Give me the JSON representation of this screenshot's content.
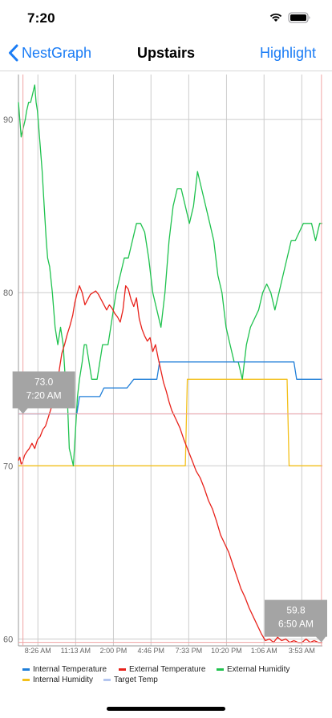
{
  "status_bar": {
    "time": "7:20",
    "icons": [
      "wifi-icon",
      "battery-icon"
    ]
  },
  "nav": {
    "back_label": "NestGraph",
    "title": "Upstairs",
    "right_label": "Highlight",
    "accent_color": "#1a7cf5"
  },
  "chart_data": {
    "type": "line",
    "title": "",
    "xlabel": "",
    "ylabel": "",
    "ylim": [
      59.6,
      92.6
    ],
    "y_ticks": [
      60,
      70,
      80,
      90
    ],
    "x_range_hours": [
      7.0,
      29.4
    ],
    "x_ticks": [
      {
        "label": "8:26 AM",
        "hour": 8.433
      },
      {
        "label": "11:13 AM",
        "hour": 11.217
      },
      {
        "label": "2:00 PM",
        "hour": 14.0
      },
      {
        "label": "4:46 PM",
        "hour": 16.767
      },
      {
        "label": "7:33 PM",
        "hour": 19.55
      },
      {
        "label": "10:20 PM",
        "hour": 22.333
      },
      {
        "label": "1:06 AM",
        "hour": 25.1
      },
      {
        "label": "3:53 AM",
        "hour": 27.883
      }
    ],
    "grid": true,
    "legend": "bottom",
    "series": [
      {
        "name": "Internal Temperature",
        "color": "#1f7ed8",
        "x": [
          7.0,
          11.3,
          11.5,
          13.0,
          13.3,
          15.0,
          15.5,
          17.2,
          17.4,
          27.3,
          27.5,
          29.4
        ],
        "y": [
          73.0,
          73.0,
          74.0,
          74.0,
          74.5,
          74.5,
          75.0,
          75.0,
          76.0,
          76.0,
          75.0,
          75.0
        ]
      },
      {
        "name": "External Temperature",
        "color": "#e8221b",
        "x": [
          7.0,
          7.1,
          7.2,
          7.3,
          7.45,
          7.6,
          7.8,
          8.0,
          8.2,
          8.4,
          8.6,
          8.8,
          9.0,
          9.2,
          9.4,
          9.6,
          9.8,
          10.0,
          10.2,
          10.4,
          10.6,
          10.8,
          11.0,
          11.15,
          11.3,
          11.5,
          11.7,
          11.9,
          12.1,
          12.3,
          12.5,
          12.7,
          12.9,
          13.1,
          13.3,
          13.5,
          13.7,
          13.9,
          14.1,
          14.3,
          14.5,
          14.7,
          14.9,
          15.1,
          15.3,
          15.5,
          15.7,
          15.9,
          16.1,
          16.3,
          16.5,
          16.7,
          16.9,
          17.1,
          17.3,
          17.5,
          17.7,
          17.9,
          18.1,
          18.3,
          18.6,
          18.9,
          19.2,
          19.5,
          19.8,
          20.1,
          20.4,
          20.7,
          21.0,
          21.3,
          21.6,
          21.9,
          22.2,
          22.5,
          22.8,
          23.1,
          23.4,
          23.7,
          24.0,
          24.3,
          24.6,
          24.9,
          25.2,
          25.5,
          25.8,
          26.1,
          26.4,
          26.7,
          27.0,
          27.3,
          27.6,
          27.9,
          28.2,
          28.5,
          28.8,
          29.1,
          29.4
        ],
        "y": [
          70.3,
          70.5,
          70.1,
          70.2,
          70.6,
          70.8,
          71.0,
          71.3,
          71.0,
          71.5,
          71.7,
          72.1,
          72.3,
          72.8,
          73.3,
          73.8,
          74.5,
          75.5,
          76.5,
          77.0,
          77.6,
          78.1,
          78.7,
          79.4,
          79.9,
          80.4,
          80.0,
          79.3,
          79.6,
          79.9,
          80.0,
          80.1,
          79.9,
          79.6,
          79.3,
          79.0,
          79.3,
          79.1,
          78.8,
          78.6,
          78.3,
          79.0,
          80.4,
          80.2,
          79.6,
          79.2,
          79.7,
          78.5,
          77.9,
          77.5,
          77.2,
          77.4,
          76.6,
          77.0,
          76.2,
          75.5,
          74.8,
          74.3,
          73.7,
          73.2,
          72.7,
          72.2,
          71.5,
          70.9,
          70.3,
          69.7,
          69.3,
          68.7,
          68.0,
          67.5,
          66.8,
          66.0,
          65.5,
          65.0,
          64.3,
          63.6,
          62.9,
          62.4,
          61.8,
          61.3,
          60.8,
          60.3,
          59.9,
          60.0,
          59.8,
          60.1,
          59.9,
          60.0,
          59.8,
          59.9,
          59.8,
          59.8,
          60.0,
          59.8,
          59.9,
          59.8,
          59.8
        ]
      },
      {
        "name": "External Humidity",
        "color": "#1fc24e",
        "x": [
          7.0,
          7.1,
          7.2,
          7.35,
          7.5,
          7.6,
          7.75,
          7.9,
          8.05,
          8.2,
          8.3,
          8.4,
          8.5,
          8.6,
          8.75,
          8.9,
          9.05,
          9.15,
          9.3,
          9.5,
          9.7,
          9.9,
          10.1,
          10.3,
          10.45,
          10.6,
          10.75,
          10.9,
          11.05,
          11.2,
          11.35,
          11.5,
          11.7,
          11.85,
          12.0,
          12.2,
          12.4,
          12.6,
          12.8,
          13.0,
          13.2,
          13.4,
          13.6,
          13.8,
          14.0,
          14.2,
          14.5,
          14.8,
          15.1,
          15.4,
          15.7,
          16.0,
          16.3,
          16.6,
          16.9,
          17.2,
          17.5,
          17.8,
          18.1,
          18.4,
          18.7,
          19.0,
          19.3,
          19.6,
          19.9,
          20.2,
          20.5,
          20.8,
          21.1,
          21.4,
          21.7,
          22.0,
          22.3,
          22.6,
          22.9,
          23.2,
          23.5,
          23.8,
          24.1,
          24.4,
          24.7,
          25.0,
          25.3,
          25.6,
          25.9,
          26.2,
          26.5,
          26.8,
          27.1,
          27.4,
          27.7,
          28.0,
          28.3,
          28.6,
          28.9,
          29.2,
          29.4
        ],
        "y": [
          91.0,
          90.0,
          89.0,
          89.5,
          90.0,
          90.5,
          91.0,
          91.0,
          91.5,
          92.0,
          91.0,
          90.5,
          89.5,
          88.5,
          87.0,
          85.0,
          83.0,
          82.0,
          81.5,
          80.0,
          78.0,
          77.0,
          78.0,
          77.0,
          75.0,
          74.0,
          71.0,
          70.5,
          70.0,
          72.0,
          74.0,
          75.0,
          76.0,
          77.0,
          77.0,
          76.0,
          75.0,
          75.0,
          75.0,
          76.0,
          77.0,
          77.0,
          77.0,
          78.0,
          79.0,
          80.0,
          81.0,
          82.0,
          82.0,
          83.0,
          84.0,
          84.0,
          83.5,
          82.0,
          80.0,
          79.0,
          78.0,
          80.0,
          83.0,
          85.0,
          86.0,
          86.0,
          85.0,
          84.0,
          85.0,
          87.0,
          86.0,
          85.0,
          84.0,
          83.0,
          81.0,
          80.0,
          78.0,
          77.0,
          76.0,
          76.0,
          75.0,
          77.0,
          78.0,
          78.5,
          79.0,
          80.0,
          80.5,
          80.0,
          79.0,
          80.0,
          81.0,
          82.0,
          83.0,
          83.0,
          83.5,
          84.0,
          84.0,
          84.0,
          83.0,
          84.0,
          84.0
        ]
      },
      {
        "name": "Internal Humidity",
        "color": "#f3c01b",
        "x": [
          7.0,
          19.3,
          19.45,
          26.8,
          26.95,
          29.4
        ],
        "y": [
          70.0,
          70.0,
          75.0,
          75.0,
          70.0,
          70.0
        ]
      },
      {
        "name": "Target Temp",
        "color": "#b4c6ef",
        "x": [
          7.0,
          29.4
        ],
        "y": [
          73.0,
          73.0
        ]
      }
    ],
    "annotations": [
      {
        "value": "73.0",
        "time": "7:20 AM",
        "hour": 7.333
      },
      {
        "value": "59.8",
        "time": "6:50 AM",
        "hour": 29.333
      }
    ]
  }
}
